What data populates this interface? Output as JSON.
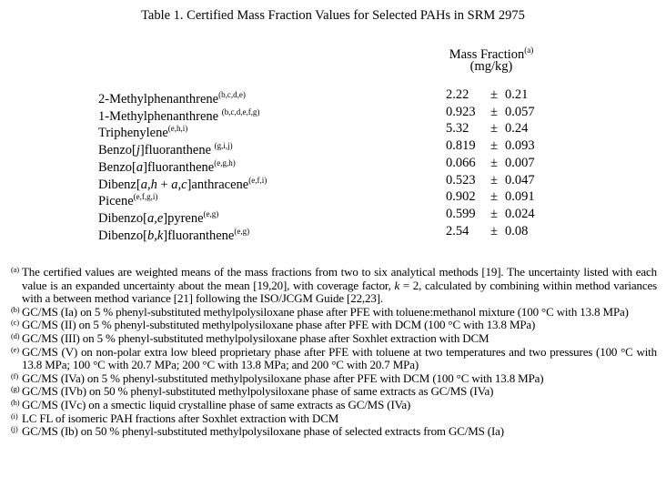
{
  "table": {
    "title": "Table 1.  Certified Mass Fraction Values for Selected PAHs in SRM 2975",
    "header": {
      "label": "Mass Fraction",
      "note": "(a)",
      "unit": "(mg/kg)"
    },
    "rows": [
      {
        "name": [
          {
            "t": "2-Methylphenanthrene"
          }
        ],
        "note": "(b,c,d,e)",
        "value": "2.22",
        "pm": "±",
        "unc": "0.21"
      },
      {
        "name": [
          {
            "t": "1-Methylphenanthrene "
          }
        ],
        "note": "(b,c,d,e,f,g)",
        "value": "0.923",
        "pm": "±",
        "unc": "0.057"
      },
      {
        "name": [
          {
            "t": "Triphenylene"
          }
        ],
        "note": "(e,h,i)",
        "value": "5.32",
        "pm": "±",
        "unc": "0.24"
      },
      {
        "name": [
          {
            "t": "Benzo["
          },
          {
            "t": "j",
            "i": true
          },
          {
            "t": "]fluoranthene "
          }
        ],
        "note": "(g,i,j)",
        "value": "0.819",
        "pm": "±",
        "unc": "0.093"
      },
      {
        "name": [
          {
            "t": "Benzo["
          },
          {
            "t": "a",
            "i": true
          },
          {
            "t": "]fluoranthene"
          }
        ],
        "note": "(e,g,h)",
        "value": "0.066",
        "pm": "±",
        "unc": "0.007"
      },
      {
        "name": [
          {
            "t": "Dibenz["
          },
          {
            "t": "a,h",
            "i": true
          },
          {
            "t": " + "
          },
          {
            "t": "a,c",
            "i": true
          },
          {
            "t": "]anthracene"
          }
        ],
        "note": "(e,f,i)",
        "value": "0.523",
        "pm": "±",
        "unc": "0.047"
      },
      {
        "name": [
          {
            "t": "Picene"
          }
        ],
        "note": "(e,f,g,i)",
        "value": "0.902",
        "pm": "±",
        "unc": "0.091"
      },
      {
        "name": [
          {
            "t": "Dibenzo["
          },
          {
            "t": "a,e",
            "i": true
          },
          {
            "t": "]pyrene"
          }
        ],
        "note": "(e,g)",
        "value": "0.599",
        "pm": "±",
        "unc": "0.024"
      },
      {
        "name": [
          {
            "t": "Dibenzo["
          },
          {
            "t": "b,k",
            "i": true
          },
          {
            "t": "]fluoranthene"
          }
        ],
        "note": "(e,g)",
        "value": "2.54",
        "pm": "±",
        "unc": "0.08"
      }
    ]
  },
  "footnotes": [
    {
      "mark": "(a)",
      "text": "The certified values are weighted means of the mass fractions from two to six analytical methods [19].  The uncertainty listed with each value is an expanded uncertainty about the mean [19,20], with coverage factor, k = 2, calculated by combining within method variances with a between method variance [21] following the ISO/JCGM Guide [22,23]."
    },
    {
      "mark": "(b)",
      "text": "GC/MS (Ia) on 5 % phenyl-substituted methylpolysiloxane phase after PFE with toluene:methanol mixture (100 °C with 13.8 MPa)"
    },
    {
      "mark": "(c)",
      "text": "GC/MS (II) on 5 % phenyl-substituted methylpolysiloxane phase after PFE with DCM (100 °C with 13.8 MPa)"
    },
    {
      "mark": "(d)",
      "text": "GC/MS (III) on 5 % phenyl-substituted methylpolysiloxane phase after Soxhlet extraction with DCM"
    },
    {
      "mark": "(e)",
      "text": "GC/MS (V) on non-polar extra low bleed proprietary phase after PFE with toluene at two temperatures and two pressures (100 °C with 13.8 MPa; 100 °C with 20.7 MPa; 200 °C with 13.8 MPa; and 200 °C with 20.7 MPa)"
    },
    {
      "mark": "(f)",
      "text": "GC/MS (IVa) on 5 % phenyl-substituted methylpolysiloxane phase after PFE with DCM (100 °C with 13.8 MPa)"
    },
    {
      "mark": "(g)",
      "text": "GC/MS (IVb) on 50 % phenyl-substituted methylpolysiloxane phase of same extracts as GC/MS (IVa)"
    },
    {
      "mark": "(h)",
      "text": "GC/MS (IVc) on a smectic liquid crystalline phase of same extracts as GC/MS (IVa)"
    },
    {
      "mark": "(i)",
      "text": "LC FL of isomeric PAH fractions after Soxhlet extraction with DCM"
    },
    {
      "mark": "(j)",
      "text": "GC/MS (Ib) on 50 % phenyl-substituted methylpolysiloxane phase of selected extracts from GC/MS (Ia)"
    }
  ]
}
